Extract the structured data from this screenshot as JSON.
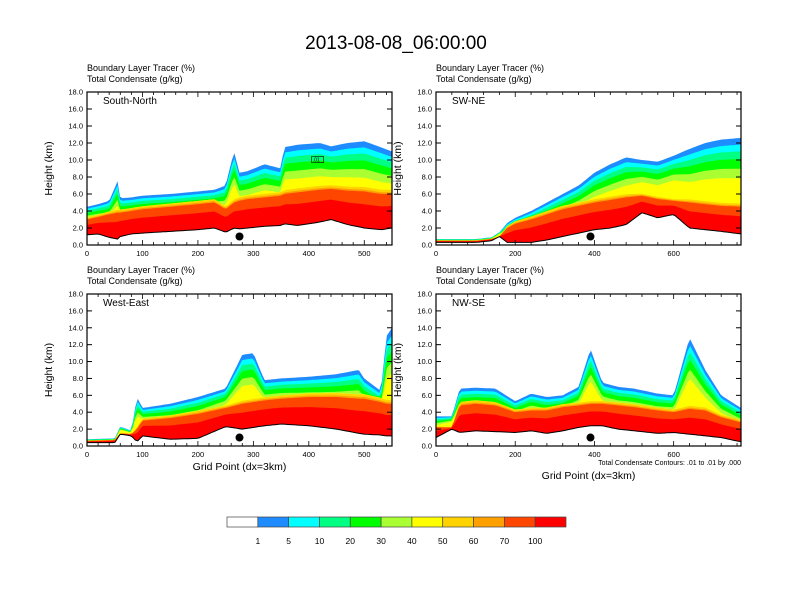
{
  "title": "2013-08-08_06:00:00",
  "chart_data": {
    "type": "heatmap",
    "title": "2013-08-08_06:00:00",
    "fields": {
      "shaded": "Boundary Layer Tracer   (%)",
      "contour": "Total Condensate   (g/kg)"
    },
    "contour_info": "Total Condensate Contours: .01 to .01 by .000",
    "colorbar": {
      "levels": [
        "1",
        "5",
        "10",
        "20",
        "30",
        "40",
        "50",
        "60",
        "70",
        "100"
      ],
      "colors": [
        "#ffffff",
        "#1e8cff",
        "#00ffff",
        "#00ff82",
        "#00ff00",
        "#aaff32",
        "#ffff00",
        "#ffd200",
        "#ffa000",
        "#ff4600",
        "#ff0000"
      ],
      "placement": "bottom"
    },
    "panels": [
      {
        "id": "south-north",
        "label": "South-North",
        "xlabel": "",
        "ylabel": "Height (km)",
        "xlim": [
          0,
          550
        ],
        "ylim": [
          0,
          18
        ],
        "xticks": [
          "0",
          "100",
          "200",
          "300",
          "400",
          "500"
        ],
        "xtick_values": [
          0,
          100,
          200,
          300,
          400,
          500
        ],
        "yticks": [
          "0.0",
          "2.0",
          "4.0",
          "6.0",
          "8.0",
          "10.0",
          "12.0",
          "14.0",
          "16.0",
          "18.0"
        ],
        "marker": {
          "x": 275,
          "y": 1.0
        },
        "contour_labels": [
          ".01"
        ],
        "profile": {
          "x": [
            0,
            20,
            40,
            55,
            60,
            80,
            100,
            150,
            200,
            230,
            250,
            265,
            275,
            290,
            320,
            350,
            355,
            380,
            420,
            440,
            470,
            500,
            530,
            550
          ],
          "terrain": [
            1.2,
            1.3,
            0.9,
            0.7,
            1.0,
            1.3,
            1.4,
            1.6,
            1.8,
            2.0,
            1.5,
            2.0,
            1.9,
            2.0,
            2.2,
            2.3,
            2.5,
            2.3,
            2.7,
            3.0,
            2.4,
            2.0,
            1.8,
            2.0
          ],
          "top": [
            4.5,
            4.8,
            5.2,
            7.5,
            5.5,
            5.6,
            5.8,
            6.0,
            6.3,
            6.5,
            7.0,
            11.0,
            8.5,
            8.7,
            9.5,
            9.0,
            11.5,
            11.8,
            12.0,
            11.6,
            12.0,
            12.2,
            11.5,
            11.0
          ],
          "core": [
            3.0,
            3.3,
            3.6,
            3.8,
            3.8,
            4.0,
            4.2,
            4.5,
            4.8,
            5.0,
            4.2,
            5.0,
            5.2,
            5.4,
            5.6,
            5.8,
            6.0,
            6.2,
            6.5,
            6.6,
            6.4,
            6.3,
            6.0,
            6.0
          ]
        }
      },
      {
        "id": "sw-ne",
        "label": "SW-NE",
        "xlabel": "",
        "ylabel": "Height (km)",
        "xlim": [
          0,
          770
        ],
        "ylim": [
          0,
          18
        ],
        "xticks": [
          "0",
          "200",
          "400",
          "600"
        ],
        "xtick_values": [
          0,
          200,
          400,
          600
        ],
        "yticks": [
          "0.0",
          "2.0",
          "4.0",
          "6.0",
          "8.0",
          "10.0",
          "12.0",
          "14.0",
          "16.0",
          "18.0"
        ],
        "marker": {
          "x": 390,
          "y": 1.0
        },
        "contour_labels": [],
        "profile": {
          "x": [
            0,
            100,
            140,
            160,
            180,
            200,
            240,
            280,
            320,
            360,
            400,
            440,
            480,
            520,
            560,
            600,
            640,
            680,
            720,
            770
          ],
          "terrain": [
            0.3,
            0.3,
            0.5,
            1.0,
            0.3,
            0.3,
            0.3,
            0.6,
            1.0,
            1.4,
            1.8,
            2.0,
            2.4,
            3.8,
            3.2,
            3.6,
            2.0,
            1.8,
            1.6,
            1.3
          ],
          "top": [
            0.7,
            0.7,
            0.9,
            1.5,
            2.6,
            3.2,
            4.0,
            5.0,
            6.0,
            7.0,
            8.5,
            9.5,
            10.3,
            10.0,
            9.8,
            10.5,
            11.3,
            12.0,
            12.4,
            12.6
          ],
          "core": [
            0.5,
            0.5,
            0.7,
            1.0,
            2.0,
            2.5,
            3.0,
            3.6,
            4.2,
            4.6,
            5.0,
            5.3,
            5.6,
            5.8,
            5.4,
            5.2,
            5.0,
            4.8,
            4.6,
            4.5
          ]
        }
      },
      {
        "id": "west-east",
        "label": "West-East",
        "xlabel": "Grid Point (dx=3km)",
        "ylabel": "Height (km)",
        "xlim": [
          0,
          550
        ],
        "ylim": [
          0,
          18
        ],
        "xticks": [
          "0",
          "100",
          "200",
          "300",
          "400",
          "500"
        ],
        "xtick_values": [
          0,
          100,
          200,
          300,
          400,
          500
        ],
        "yticks": [
          "0.0",
          "2.0",
          "4.0",
          "6.0",
          "8.0",
          "10.0",
          "12.0",
          "14.0",
          "16.0",
          "18.0"
        ],
        "marker": {
          "x": 275,
          "y": 1.0
        },
        "contour_labels": [],
        "profile": {
          "x": [
            0,
            50,
            60,
            80,
            90,
            100,
            150,
            200,
            250,
            280,
            300,
            320,
            350,
            400,
            450,
            490,
            500,
            530,
            540,
            550
          ],
          "terrain": [
            0.4,
            0.4,
            1.4,
            1.2,
            0.5,
            1.2,
            0.8,
            0.9,
            2.3,
            2.0,
            2.2,
            2.4,
            2.6,
            2.4,
            2.0,
            1.5,
            1.4,
            1.3,
            1.2,
            1.2
          ],
          "top": [
            0.8,
            0.9,
            2.3,
            1.8,
            5.8,
            4.5,
            5.0,
            5.8,
            6.8,
            10.8,
            11.0,
            7.8,
            8.0,
            8.2,
            8.5,
            9.0,
            8.0,
            6.5,
            13.0,
            14.0
          ],
          "core": [
            0.6,
            0.7,
            1.5,
            1.4,
            2.0,
            3.0,
            3.3,
            3.8,
            4.5,
            5.0,
            5.2,
            5.4,
            5.6,
            5.8,
            5.8,
            5.6,
            5.6,
            5.2,
            5.0,
            5.0
          ]
        }
      },
      {
        "id": "nw-se",
        "label": "NW-SE",
        "xlabel": "Grid Point (dx=3km)",
        "ylabel": "Height (km)",
        "xlim": [
          0,
          770
        ],
        "ylim": [
          0,
          18
        ],
        "xticks": [
          "0",
          "200",
          "400",
          "600"
        ],
        "xtick_values": [
          0,
          200,
          400,
          600
        ],
        "yticks": [
          "0.0",
          "2.0",
          "4.0",
          "6.0",
          "8.0",
          "10.0",
          "12.0",
          "14.0",
          "16.0",
          "18.0"
        ],
        "marker": {
          "x": 390,
          "y": 1.0
        },
        "contour_labels": [],
        "profile": {
          "x": [
            0,
            40,
            60,
            100,
            150,
            200,
            240,
            280,
            320,
            360,
            390,
            420,
            460,
            500,
            560,
            600,
            640,
            680,
            720,
            770
          ],
          "terrain": [
            1.0,
            2.0,
            1.6,
            1.8,
            1.7,
            1.6,
            1.8,
            1.5,
            1.8,
            2.2,
            2.4,
            2.4,
            2.0,
            1.8,
            1.5,
            1.6,
            1.4,
            1.2,
            1.0,
            0.5
          ],
          "top": [
            3.5,
            3.5,
            6.8,
            6.9,
            6.8,
            5.3,
            6.2,
            5.8,
            6.0,
            7.0,
            11.5,
            7.5,
            7.0,
            6.8,
            6.2,
            6.0,
            12.8,
            9.0,
            6.0,
            4.5
          ],
          "core": [
            2.2,
            2.2,
            4.8,
            5.0,
            4.8,
            4.0,
            4.2,
            4.2,
            4.6,
            4.8,
            5.0,
            5.0,
            4.8,
            4.6,
            4.2,
            4.0,
            4.4,
            4.2,
            3.4,
            2.8
          ]
        }
      }
    ]
  }
}
